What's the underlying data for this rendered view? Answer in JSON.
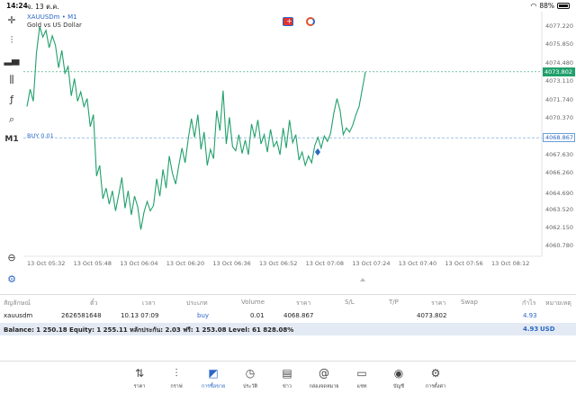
{
  "status": {
    "time": "14:24",
    "date": "จ. 13 ต.ค.",
    "battery": "88%"
  },
  "chart": {
    "symbol": "XAUUSDm",
    "timeframe": "M1",
    "symbol_line": "XAUUSDm • M1",
    "description": "Gold vs US Dollar",
    "buy_line_label": "BUY 0.01",
    "current_price": "4073.802",
    "buy_price_tag": "4068.867",
    "price_levels": [
      "4077.220",
      "4075.850",
      "4074.480",
      "4073.110",
      "4071.740",
      "4070.370",
      "4069.000",
      "4067.630",
      "4066.260",
      "4064.690",
      "4063.520",
      "4062.150",
      "4060.780"
    ],
    "time_labels": [
      "13 Oct 05:32",
      "13 Oct 05:48",
      "13 Oct 06:04",
      "13 Oct 06:20",
      "13 Oct 06:36",
      "13 Oct 06:52",
      "13 Oct 07:08",
      "13 Oct 07:24",
      "13 Oct 07:40",
      "13 Oct 07:56",
      "13 Oct 08:12"
    ],
    "colors": {
      "line": "#21a06b",
      "buy": "#2b67c6"
    }
  },
  "chart_data": {
    "type": "line",
    "title": "XAUUSDm • M1",
    "ylim": [
      4060.0,
      4078.3
    ],
    "series": [
      {
        "name": "XAUUSDm",
        "values": [
          4071.2,
          4072.5,
          4071.6,
          4075.2,
          4077.2,
          4076.4,
          4076.9,
          4075.6,
          4076.5,
          4075.8,
          4074.1,
          4075.4,
          4073.7,
          4074.2,
          4072.0,
          4073.3,
          4071.6,
          4072.3,
          4071.2,
          4071.8,
          4069.7,
          4070.6,
          4066.0,
          4066.8,
          4064.3,
          4065.1,
          4063.9,
          4064.9,
          4063.4,
          4064.6,
          4065.9,
          4063.6,
          4064.9,
          4063.1,
          4064.5,
          4063.7,
          4062.0,
          4063.3,
          4064.1,
          4063.4,
          4063.8,
          4065.8,
          4064.5,
          4066.5,
          4065.1,
          4067.5,
          4066.2,
          4065.4,
          4066.8,
          4068.1,
          4067.0,
          4068.8,
          4070.3,
          4068.9,
          4070.6,
          4068.0,
          4069.3,
          4066.8,
          4068.0,
          4067.3,
          4070.9,
          4069.4,
          4072.4,
          4068.4,
          4070.4,
          4068.2,
          4067.9,
          4069.1,
          4067.7,
          4068.7,
          4067.6,
          4069.9,
          4068.9,
          4070.2,
          4068.4,
          4069.1,
          4067.8,
          4069.5,
          4068.2,
          4068.6,
          4067.6,
          4069.6,
          4068.1,
          4070.2,
          4068.5,
          4069.1,
          4067.2,
          4067.8,
          4066.8,
          4067.5,
          4067.0,
          4068.3,
          4068.9,
          4068.1,
          4069.0,
          4068.6,
          4069.2,
          4070.7,
          4071.8,
          4070.9,
          4069.1,
          4069.6,
          4069.3,
          4069.8,
          4070.6,
          4071.2,
          4072.5,
          4073.8
        ]
      }
    ]
  },
  "toolbar": {
    "m1": "M1",
    "icons": [
      "crosshair-icon",
      "candlestick-icon",
      "bar-chart-icon",
      "indicators-icon",
      "function-icon",
      "objects-icon",
      "zoom-icon",
      "settings-icon"
    ]
  },
  "table": {
    "headers": [
      "สัญลักษณ์",
      "ตั๋ว",
      "เวลา",
      "ประเภท",
      "Volume",
      "ราคา",
      "S/L",
      "T/P",
      "ราคา",
      "Swap",
      "กำไร",
      "หมายเหตุ"
    ],
    "rows": [
      {
        "symbol": "xauusdm",
        "ticket": "2626581648",
        "time": "10.13 07:09",
        "type": "buy",
        "volume": "0.01",
        "price": "4068.867",
        "sl": "",
        "tp": "",
        "current": "4073.802",
        "swap": "",
        "profit": "4.93",
        "comment": ""
      }
    ],
    "balance_text": "Balance: 1 250.18 Equity: 1 255.11 หลักประกัน: 2.03 ฟรี: 1 253.08 Level: 61 828.08%",
    "total_profit": "4.93",
    "currency": "USD"
  },
  "nav": [
    {
      "label": "ราคา",
      "icon": "quotes-icon"
    },
    {
      "label": "กราฟ",
      "icon": "chart-icon"
    },
    {
      "label": "การซื้อขาย",
      "icon": "trade-icon"
    },
    {
      "label": "ประวัติ",
      "icon": "history-icon"
    },
    {
      "label": "ข่าว",
      "icon": "news-icon"
    },
    {
      "label": "กล่องจดหมาย",
      "icon": "mailbox-icon"
    },
    {
      "label": "แชท",
      "icon": "chat-icon"
    },
    {
      "label": "บัญชี",
      "icon": "account-icon"
    },
    {
      "label": "การตั้งค่า",
      "icon": "settings-icon"
    }
  ]
}
